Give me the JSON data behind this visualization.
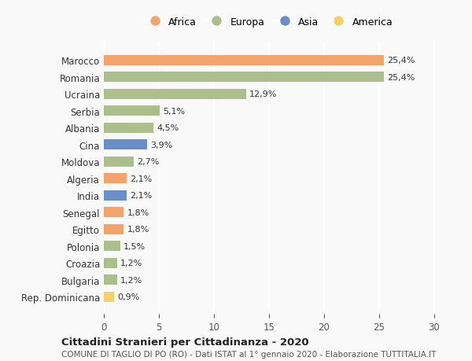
{
  "countries": [
    "Rep. Dominicana",
    "Bulgaria",
    "Croazia",
    "Polonia",
    "Egitto",
    "Senegal",
    "India",
    "Algeria",
    "Moldova",
    "Cina",
    "Albania",
    "Serbia",
    "Ucraina",
    "Romania",
    "Marocco"
  ],
  "values": [
    0.9,
    1.2,
    1.2,
    1.5,
    1.8,
    1.8,
    2.1,
    2.1,
    2.7,
    3.9,
    4.5,
    5.1,
    12.9,
    25.4,
    25.4
  ],
  "labels": [
    "0,9%",
    "1,2%",
    "1,2%",
    "1,5%",
    "1,8%",
    "1,8%",
    "2,1%",
    "2,1%",
    "2,7%",
    "3,9%",
    "4,5%",
    "5,1%",
    "12,9%",
    "25,4%",
    "25,4%"
  ],
  "continents": [
    "America",
    "Europa",
    "Europa",
    "Europa",
    "Africa",
    "Africa",
    "Asia",
    "Africa",
    "Europa",
    "Asia",
    "Europa",
    "Europa",
    "Europa",
    "Europa",
    "Africa"
  ],
  "continent_colors": {
    "Africa": "#F4A46A",
    "Europa": "#ABBE8B",
    "Asia": "#6A8FC8",
    "America": "#F5D06A"
  },
  "legend_order": [
    "Africa",
    "Europa",
    "Asia",
    "America"
  ],
  "title_line1": "Cittadini Stranieri per Cittadinanza - 2020",
  "title_line2": "COMUNE DI TAGLIO DI PO (RO) - Dati ISTAT al 1° gennaio 2020 - Elaborazione TUTTITALIA.IT",
  "xlim": [
    0,
    30
  ],
  "xticks": [
    0,
    5,
    10,
    15,
    20,
    25,
    30
  ],
  "background_color": "#f9f9f9",
  "grid_color": "#ffffff",
  "bar_height": 0.6
}
